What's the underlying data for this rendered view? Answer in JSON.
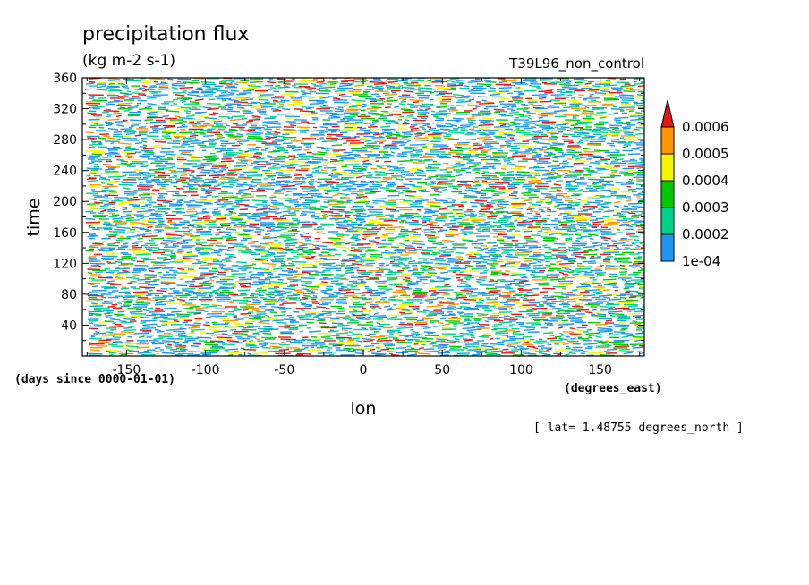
{
  "title": "precipitation flux",
  "units": "(kg m-2 s-1)",
  "run_label": "T39L96_non_control",
  "footnote": "[ lat=-1.48755 degrees_north ]",
  "chart_data": {
    "type": "heatmap",
    "xlabel": "lon",
    "ylabel": "time",
    "x_units": "(degrees_east)",
    "y_units": "(days since 0000-01-01)",
    "xlim": [
      -178,
      178
    ],
    "ylim": [
      0,
      360
    ],
    "x_ticks": [
      -150,
      -100,
      -50,
      0,
      50,
      100,
      150
    ],
    "y_ticks": [
      40,
      80,
      120,
      160,
      200,
      240,
      280,
      320,
      360
    ],
    "x_tick_labels": [
      "-150",
      "-100",
      "-50",
      "0",
      "50",
      "100",
      "150"
    ],
    "y_tick_labels": [
      "40",
      "80",
      "120",
      "160",
      "200",
      "240",
      "280",
      "320",
      "360"
    ],
    "colorbar": {
      "levels": [
        0.0001,
        0.0002,
        0.0003,
        0.0004,
        0.0005,
        0.0006
      ],
      "labels": [
        "1e-04",
        "0.0002",
        "0.0003",
        "0.0004",
        "0.0005",
        "0.0006"
      ],
      "colors": [
        "#1e96f0",
        "#00d28c",
        "#00c800",
        "#f5f500",
        "#ff9600",
        "#e61414"
      ],
      "extend": "max"
    }
  }
}
